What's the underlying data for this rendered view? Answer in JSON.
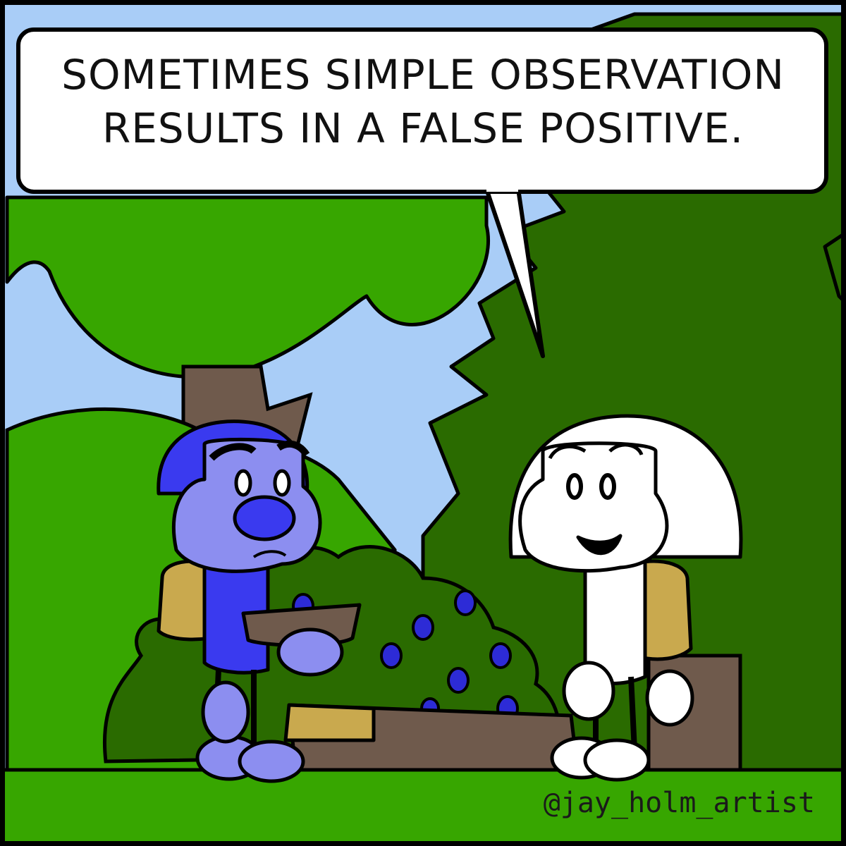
{
  "speech_bubble": {
    "line1": "SOMETIMES SIMPLE OBSERVATION",
    "line2": "RESULTS IN A FALSE POSITIVE."
  },
  "credit": "@jay_holm_artist",
  "colors": {
    "sky": "#a9cdf7",
    "grass": "#37a600",
    "dark_tree": "#2a6b00",
    "trunk": "#6f5a4c",
    "blue_character": "#8c8ef0",
    "blue_hat": "#3a3aef",
    "berry": "#2d2bd6",
    "backpack": "#c9a94e",
    "outline": "#000000"
  }
}
